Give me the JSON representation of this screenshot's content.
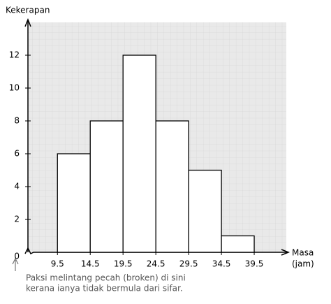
{
  "chart_data": {
    "type": "histogram",
    "ylabel": "Kekerapan",
    "xlabel": [
      "Masa",
      "(jam)"
    ],
    "annotation": [
      "Paksi melintang pecah (broken) di sini",
      "kerana ianya tidak bermula dari sifar."
    ],
    "bins": [
      9.5,
      14.5,
      19.5,
      24.5,
      29.5,
      34.5,
      39.5
    ],
    "values": [
      6,
      8,
      12,
      8,
      5,
      1
    ],
    "color": "#ffffff",
    "xlim": [
      5,
      44.5
    ],
    "xticks": [
      9.5,
      14.5,
      19.5,
      24.5,
      29.5,
      34.5,
      39.5
    ],
    "ylim": [
      0,
      14
    ],
    "yticks": [
      0,
      2,
      4,
      6,
      8,
      10,
      12
    ]
  }
}
